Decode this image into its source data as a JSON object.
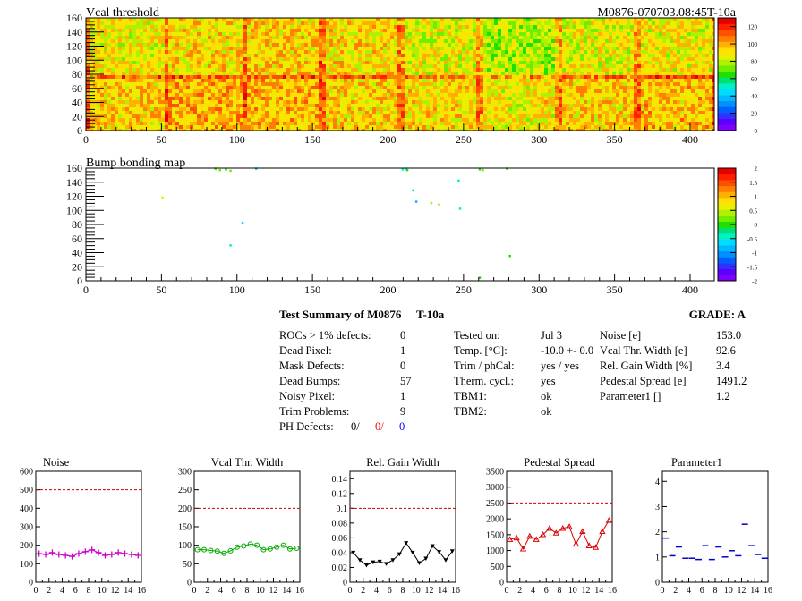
{
  "header": {
    "map1_title": "Vcal threshold",
    "module_id": "M0876-070703.08:45T-10a",
    "map2_title": "Bump bonding map"
  },
  "maps": {
    "x_ticks": [
      "0",
      "50",
      "100",
      "150",
      "200",
      "250",
      "300",
      "350",
      "400"
    ],
    "y_ticks": [
      "0",
      "20",
      "40",
      "60",
      "80",
      "100",
      "120",
      "140",
      "160"
    ],
    "xlim": [
      0,
      416
    ],
    "ylim": [
      0,
      160
    ],
    "map1_palette_ticks": [
      "0",
      "20",
      "40",
      "60",
      "80",
      "100",
      "120"
    ],
    "map1_zlim": [
      0,
      130
    ],
    "map2_palette_ticks": [
      "-2",
      "-1.5",
      "-1",
      "-0.5",
      "0",
      "0.5",
      "1",
      "1.5",
      "2"
    ],
    "map2_zlim": [
      -2,
      2
    ]
  },
  "summary": {
    "title": "Test Summary of M0876",
    "temp_label": "T-10a",
    "grade": "GRADE:  A",
    "left": [
      {
        "label": "ROCs > 1% defects:",
        "value": "0"
      },
      {
        "label": "Dead Pixel:",
        "value": "1"
      },
      {
        "label": "Mask Defects:",
        "value": "0"
      },
      {
        "label": "Dead Bumps:",
        "value": "57"
      },
      {
        "label": "Noisy Pixel:",
        "value": "1"
      },
      {
        "label": "Trim Problems:",
        "value": "9"
      }
    ],
    "ph_label": "PH Defects:",
    "ph_values": [
      "0/",
      "0/",
      "0"
    ],
    "ph_colors": [
      "#000000",
      "#ff0000",
      "#0000ff"
    ],
    "middle": [
      {
        "label": "Tested on:",
        "value": "Jul 3"
      },
      {
        "label": "Temp. [°C]:",
        "value": "-10.0 +- 0.0"
      },
      {
        "label": "Trim / phCal:",
        "value": "yes / yes"
      },
      {
        "label": "Therm. cycl.:",
        "value": "yes"
      },
      {
        "label": "TBM1:",
        "value": "ok"
      },
      {
        "label": "TBM2:",
        "value": "ok"
      }
    ],
    "right": [
      {
        "label": "Noise [e]",
        "value": "153.0"
      },
      {
        "label": "Vcal Thr. Width [e]",
        "value": "92.6"
      },
      {
        "label": "Rel. Gain Width [%]",
        "value": "3.4"
      },
      {
        "label": "Pedestal Spread [e]",
        "value": "1491.2"
      },
      {
        "label": "Parameter1 []",
        "value": "1.2"
      }
    ]
  },
  "chart_data": [
    {
      "type": "line",
      "title": "Noise",
      "color": "#cc00cc",
      "marker": "cross",
      "x": [
        0,
        1,
        2,
        3,
        4,
        5,
        6,
        7,
        8,
        9,
        10,
        11,
        12,
        13,
        14,
        15
      ],
      "values": [
        155,
        150,
        160,
        150,
        145,
        140,
        155,
        165,
        175,
        160,
        145,
        150,
        160,
        155,
        150,
        145
      ],
      "ylim": [
        0,
        600
      ],
      "y_ticks": [
        "0",
        "100",
        "200",
        "300",
        "400",
        "500",
        "600"
      ],
      "x_ticks": [
        "0",
        "2",
        "4",
        "6",
        "8",
        "10",
        "12",
        "14",
        "16"
      ],
      "ref_line": 500
    },
    {
      "type": "line",
      "title": "Vcal Thr. Width",
      "color": "#00aa00",
      "marker": "circle",
      "x": [
        0,
        1,
        2,
        3,
        4,
        5,
        6,
        7,
        8,
        9,
        10,
        11,
        12,
        13,
        14,
        15
      ],
      "values": [
        88,
        88,
        86,
        84,
        78,
        85,
        95,
        98,
        103,
        100,
        88,
        90,
        95,
        100,
        90,
        92
      ],
      "ylim": [
        0,
        300
      ],
      "y_ticks": [
        "0",
        "50",
        "100",
        "150",
        "200",
        "250",
        "300"
      ],
      "x_ticks": [
        "0",
        "2",
        "4",
        "6",
        "8",
        "10",
        "12",
        "14",
        "16"
      ],
      "ref_line": 200
    },
    {
      "type": "line",
      "title": "Rel. Gain Width",
      "color": "#000000",
      "marker": "triangle-down",
      "x": [
        0,
        1,
        2,
        3,
        4,
        5,
        6,
        7,
        8,
        9,
        10,
        11,
        12,
        13,
        14,
        15
      ],
      "values": [
        0.04,
        0.03,
        0.023,
        0.027,
        0.028,
        0.025,
        0.03,
        0.038,
        0.053,
        0.04,
        0.026,
        0.032,
        0.049,
        0.041,
        0.03,
        0.042
      ],
      "ylim": [
        0,
        0.15
      ],
      "y_ticks": [
        "0",
        "0.02",
        "0.04",
        "0.06",
        "0.08",
        "0.1",
        "0.12",
        "0.14"
      ],
      "y_tick_values": [
        0,
        0.02,
        0.04,
        0.06,
        0.08,
        0.1,
        0.12,
        0.14
      ],
      "x_ticks": [
        "0",
        "2",
        "4",
        "6",
        "8",
        "10",
        "12",
        "14",
        "16"
      ],
      "ref_line": 0.1
    },
    {
      "type": "line",
      "title": "Pedestal Spread",
      "color": "#dd0000",
      "marker": "triangle-up",
      "x": [
        0,
        1,
        2,
        3,
        4,
        5,
        6,
        7,
        8,
        9,
        10,
        11,
        12,
        13,
        14,
        15
      ],
      "values": [
        1350,
        1400,
        1050,
        1450,
        1350,
        1500,
        1700,
        1550,
        1700,
        1750,
        1200,
        1600,
        1150,
        1100,
        1600,
        1950
      ],
      "ylim": [
        0,
        3500
      ],
      "y_ticks": [
        "0",
        "500",
        "1000",
        "1500",
        "2000",
        "2500",
        "3000",
        "3500"
      ],
      "x_ticks": [
        "0",
        "2",
        "4",
        "6",
        "8",
        "10",
        "12",
        "14",
        "16"
      ],
      "ref_line": 2500
    },
    {
      "type": "scatter",
      "title": "Parameter1",
      "color": "#0000cc",
      "marker": "hbar",
      "x": [
        0,
        1,
        2,
        3,
        4,
        5,
        6,
        7,
        8,
        9,
        10,
        11,
        12,
        13,
        14,
        15
      ],
      "values": [
        1.75,
        1.05,
        1.4,
        0.95,
        0.95,
        0.9,
        1.45,
        0.9,
        1.4,
        1.0,
        1.25,
        1.05,
        2.3,
        1.45,
        1.1,
        0.95
      ],
      "ylim": [
        0,
        4.4
      ],
      "y_ticks": [
        "0",
        "1",
        "2",
        "3",
        "4"
      ],
      "x_ticks": [
        "0",
        "2",
        "4",
        "6",
        "8",
        "10",
        "12",
        "14",
        "16"
      ]
    }
  ]
}
